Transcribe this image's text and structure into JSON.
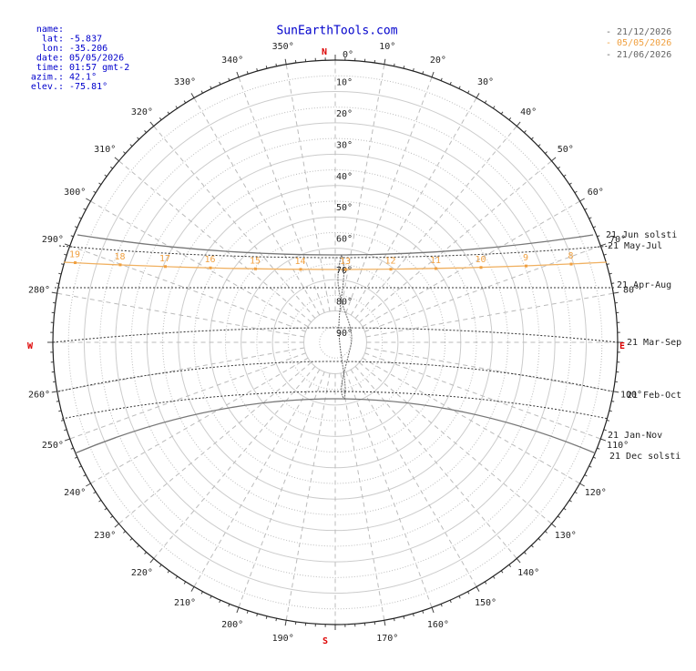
{
  "title": "SunEarthTools.com",
  "info": [
    [
      "name:"
    ],
    [
      "lat:",
      "-5.837"
    ],
    [
      "lon:",
      "-35.206"
    ],
    [
      "date:",
      "05/05/2026"
    ],
    [
      "time:",
      "01:57 gmt-2"
    ],
    [
      "azim.:",
      "42.1°"
    ],
    [
      "elev.:",
      "-75.81°"
    ]
  ],
  "legend": [
    "- 21/12/2026",
    "- 05/05/2026",
    "- 21/06/2026"
  ],
  "cardinals": {
    "north": "N",
    "east": "E",
    "south": "S",
    "west": "W"
  },
  "azimuth_labels": [
    "0°",
    "10°",
    "20°",
    "30°",
    "40°",
    "50°",
    "60°",
    "70°",
    "80°",
    "100°",
    "110°",
    "120°",
    "130°",
    "140°",
    "150°",
    "160°",
    "170°",
    "190°",
    "200°",
    "210°",
    "220°",
    "230°",
    "240°",
    "250°",
    "260°",
    "280°",
    "290°",
    "300°",
    "310°",
    "320°",
    "330°",
    "340°",
    "350°"
  ],
  "elevation_labels": [
    "10°",
    "20°",
    "30°",
    "40°",
    "50°",
    "60°",
    "70°",
    "80°",
    "90°"
  ],
  "curve_labels": [
    "21 Jun  solsti",
    "21 May-Jul",
    "21 Apr-Aug",
    "21 Mar-Sep",
    "21 Feb-Oct",
    "21 Jan-Nov",
    "21 Dec  solsti"
  ],
  "hour_labels": [
    "19",
    "18",
    "17",
    "16",
    "15",
    "14",
    "13",
    "12",
    "11",
    "10",
    "9",
    "8"
  ]
}
